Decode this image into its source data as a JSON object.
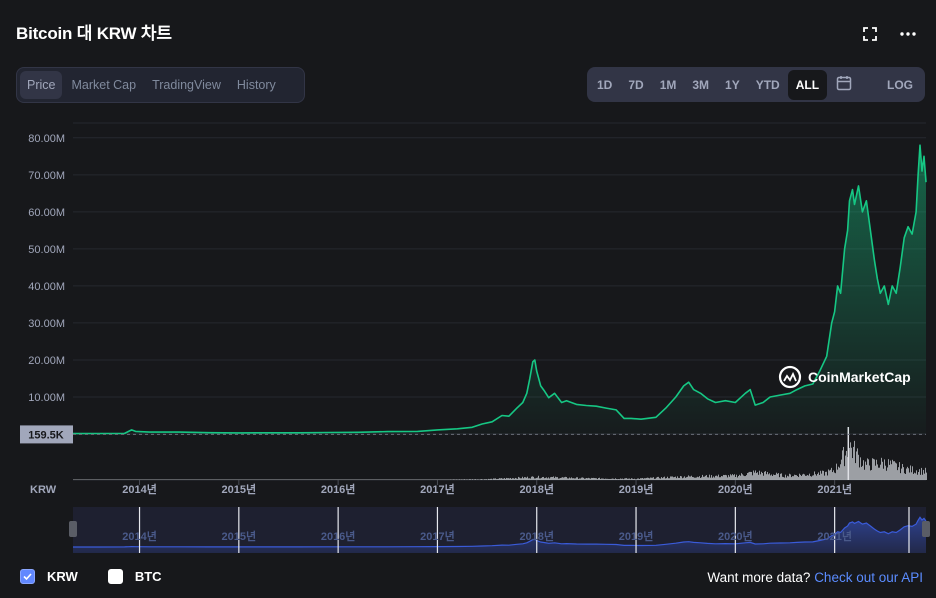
{
  "header": {
    "title": "Bitcoin 대 KRW 차트"
  },
  "view_tabs": [
    {
      "label": "Price",
      "active": true
    },
    {
      "label": "Market Cap",
      "active": false
    },
    {
      "label": "TradingView",
      "active": false
    },
    {
      "label": "History",
      "active": false
    }
  ],
  "ranges": [
    {
      "label": "1D",
      "active": false
    },
    {
      "label": "7D",
      "active": false
    },
    {
      "label": "1M",
      "active": false
    },
    {
      "label": "3M",
      "active": false
    },
    {
      "label": "1Y",
      "active": false
    },
    {
      "label": "YTD",
      "active": false
    },
    {
      "label": "ALL",
      "active": true
    }
  ],
  "log_label": "LOG",
  "watermark": "CoinMarketCap",
  "legend": [
    {
      "label": "KRW",
      "checked": true
    },
    {
      "label": "BTC",
      "checked": false
    }
  ],
  "footer": {
    "prompt": "Want more data?",
    "link": "Check out our API"
  },
  "colors": {
    "line": "#16c784",
    "navigator_line": "#3a5bd9",
    "accent": "#5b8cff"
  },
  "chart_data": {
    "type": "area",
    "currency_label": "KRW",
    "y_ticks": [
      "10.00M",
      "20.00M",
      "30.00M",
      "40.00M",
      "50.00M",
      "60.00M",
      "70.00M",
      "80.00M"
    ],
    "y_tick_values": [
      10000000,
      20000000,
      30000000,
      40000000,
      50000000,
      60000000,
      70000000,
      80000000
    ],
    "ylim": [
      0,
      84000000
    ],
    "x_ticks": [
      "2014년",
      "2015년",
      "2016년",
      "2017년",
      "2018년",
      "2019년",
      "2020년",
      "2021년"
    ],
    "x_tick_values": [
      2014,
      2015,
      2016,
      2017,
      2018,
      2019,
      2020,
      2021
    ],
    "xlim": [
      2013.33,
      2021.92
    ],
    "current_label": "159.5K",
    "current_value": 159500,
    "series": [
      {
        "x": [
          2013.33,
          2013.6,
          2013.85,
          2013.92,
          2013.96,
          2014.1,
          2014.4,
          2014.7,
          2015.0,
          2015.3,
          2015.6,
          2015.9,
          2016.2,
          2016.5,
          2016.8,
          2017.0,
          2017.2,
          2017.35,
          2017.45,
          2017.55,
          2017.65,
          2017.72,
          2017.8,
          2017.86,
          2017.9,
          2017.93,
          2017.96,
          2017.98,
          2018.0,
          2018.04,
          2018.08,
          2018.12,
          2018.18,
          2018.25,
          2018.3,
          2018.4,
          2018.5,
          2018.6,
          2018.7,
          2018.8,
          2018.88,
          2018.95,
          2019.05,
          2019.2,
          2019.3,
          2019.4,
          2019.48,
          2019.53,
          2019.58,
          2019.65,
          2019.72,
          2019.8,
          2019.9,
          2020.0,
          2020.1,
          2020.15,
          2020.2,
          2020.28,
          2020.35,
          2020.45,
          2020.55,
          2020.62,
          2020.7,
          2020.78,
          2020.85,
          2020.92,
          2020.97,
          2021.0,
          2021.03,
          2021.06,
          2021.1,
          2021.13,
          2021.15,
          2021.18,
          2021.2,
          2021.24,
          2021.28,
          2021.32,
          2021.36,
          2021.4,
          2021.43,
          2021.46,
          2021.5,
          2021.54,
          2021.58,
          2021.62,
          2021.66,
          2021.7,
          2021.74,
          2021.78,
          2021.82,
          2021.84,
          2021.86,
          2021.88,
          2021.9,
          2021.92
        ],
        "y": [
          120000,
          130000,
          150000,
          1100000,
          700000,
          500000,
          500000,
          350000,
          300000,
          320000,
          330000,
          400000,
          450000,
          650000,
          700000,
          1100000,
          1400000,
          1800000,
          2700000,
          3300000,
          5000000,
          4800000,
          7000000,
          8500000,
          11000000,
          15000000,
          19500000,
          20000000,
          17000000,
          13000000,
          11500000,
          9800000,
          11000000,
          8500000,
          9000000,
          8000000,
          7700000,
          7500000,
          7000000,
          6500000,
          4200000,
          4200000,
          4000000,
          4500000,
          7000000,
          10000000,
          13000000,
          14000000,
          12000000,
          11000000,
          9500000,
          8500000,
          9000000,
          8500000,
          11000000,
          12000000,
          7800000,
          8500000,
          10000000,
          10500000,
          11000000,
          12000000,
          13000000,
          13500000,
          17000000,
          21000000,
          30000000,
          33000000,
          40000000,
          38000000,
          50000000,
          55000000,
          63000000,
          66000000,
          62000000,
          67000000,
          60000000,
          63000000,
          55000000,
          47000000,
          42000000,
          38000000,
          40000000,
          35000000,
          40000000,
          38000000,
          45000000,
          53000000,
          56000000,
          54000000,
          60000000,
          70000000,
          78000000,
          71000000,
          75000000,
          68000000
        ]
      }
    ],
    "volume": {
      "x": [
        2013.33,
        2014.0,
        2015.0,
        2016.0,
        2017.0,
        2017.5,
        2017.9,
        2018.0,
        2018.5,
        2019.0,
        2019.5,
        2020.0,
        2020.2,
        2020.5,
        2020.9,
        2021.0,
        2021.15,
        2021.3,
        2021.5,
        2021.7,
        2021.92
      ],
      "y": [
        0.003,
        0.003,
        0.002,
        0.002,
        0.004,
        0.01,
        0.03,
        0.035,
        0.02,
        0.015,
        0.04,
        0.05,
        0.09,
        0.05,
        0.08,
        0.12,
        0.4,
        0.18,
        0.2,
        0.13,
        0.1
      ]
    }
  }
}
